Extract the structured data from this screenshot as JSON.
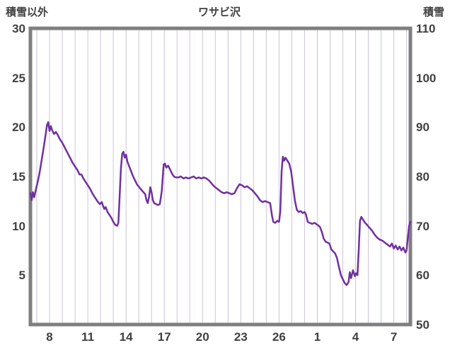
{
  "colors": {
    "line": "#7030a0",
    "frame": "#7f7f7f",
    "grid": "#ccc4d8",
    "text": "#404040",
    "background": "#ffffff"
  },
  "chart_data": {
    "type": "line",
    "title": "ワサビ沢",
    "left_axis": {
      "label": "積雪以外",
      "min": 0,
      "max": 30,
      "ticks": [
        30,
        25,
        20,
        15,
        10,
        5
      ]
    },
    "right_axis": {
      "label": "積雪",
      "min": 50,
      "max": 110,
      "ticks": [
        110,
        100,
        90,
        80,
        70,
        60,
        50
      ]
    },
    "x_axis": {
      "min": 6.5,
      "max": 36.3,
      "tick_days": [
        8,
        11,
        14,
        17,
        20,
        23,
        26,
        29,
        32,
        35
      ],
      "tick_labels": [
        "8",
        "11",
        "14",
        "17",
        "20",
        "23",
        "26",
        "1",
        "4",
        "7"
      ],
      "gridlines": "daily",
      "horizontal_gridlines": false
    },
    "series": [
      {
        "name": "積雪",
        "color": "#7030a0",
        "points": [
          [
            6.5,
            13.3
          ],
          [
            6.6,
            12.6
          ],
          [
            6.7,
            13.4
          ],
          [
            6.8,
            12.9
          ],
          [
            6.95,
            13.8
          ],
          [
            7.1,
            14.6
          ],
          [
            7.25,
            15.6
          ],
          [
            7.4,
            16.8
          ],
          [
            7.55,
            18.0
          ],
          [
            7.7,
            19.3
          ],
          [
            7.8,
            20.2
          ],
          [
            7.9,
            20.5
          ],
          [
            8.0,
            19.6
          ],
          [
            8.1,
            20.1
          ],
          [
            8.2,
            19.7
          ],
          [
            8.35,
            19.3
          ],
          [
            8.5,
            19.5
          ],
          [
            8.65,
            19.2
          ],
          [
            8.8,
            18.8
          ],
          [
            9.0,
            18.4
          ],
          [
            9.2,
            17.9
          ],
          [
            9.4,
            17.4
          ],
          [
            9.6,
            16.9
          ],
          [
            9.8,
            16.4
          ],
          [
            10.0,
            16.0
          ],
          [
            10.2,
            15.6
          ],
          [
            10.35,
            15.2
          ],
          [
            10.5,
            15.2
          ],
          [
            10.65,
            14.8
          ],
          [
            10.8,
            14.5
          ],
          [
            11.0,
            14.1
          ],
          [
            11.2,
            13.7
          ],
          [
            11.35,
            13.3
          ],
          [
            11.5,
            13.0
          ],
          [
            11.65,
            12.7
          ],
          [
            11.8,
            12.4
          ],
          [
            11.95,
            12.2
          ],
          [
            12.1,
            12.4
          ],
          [
            12.2,
            12.0
          ],
          [
            12.3,
            11.7
          ],
          [
            12.4,
            11.9
          ],
          [
            12.55,
            11.4
          ],
          [
            12.7,
            11.1
          ],
          [
            12.85,
            10.8
          ],
          [
            13.0,
            10.4
          ],
          [
            13.15,
            10.1
          ],
          [
            13.3,
            10.0
          ],
          [
            13.4,
            10.3
          ],
          [
            13.5,
            13.0
          ],
          [
            13.6,
            15.8
          ],
          [
            13.7,
            17.3
          ],
          [
            13.8,
            17.5
          ],
          [
            13.9,
            16.9
          ],
          [
            14.0,
            17.2
          ],
          [
            14.1,
            16.5
          ],
          [
            14.25,
            16.0
          ],
          [
            14.4,
            15.5
          ],
          [
            14.55,
            15.0
          ],
          [
            14.7,
            14.6
          ],
          [
            14.85,
            14.2
          ],
          [
            15.1,
            13.8
          ],
          [
            15.3,
            13.5
          ],
          [
            15.5,
            13.2
          ],
          [
            15.6,
            12.6
          ],
          [
            15.7,
            12.3
          ],
          [
            15.8,
            12.9
          ],
          [
            15.9,
            13.9
          ],
          [
            16.0,
            13.4
          ],
          [
            16.1,
            12.6
          ],
          [
            16.2,
            12.3
          ],
          [
            16.35,
            12.2
          ],
          [
            16.5,
            12.1
          ],
          [
            16.65,
            12.2
          ],
          [
            16.8,
            13.5
          ],
          [
            16.95,
            16.2
          ],
          [
            17.05,
            16.3
          ],
          [
            17.15,
            15.9
          ],
          [
            17.3,
            16.1
          ],
          [
            17.45,
            15.7
          ],
          [
            17.6,
            15.3
          ],
          [
            17.75,
            15.0
          ],
          [
            17.9,
            14.9
          ],
          [
            18.1,
            14.9
          ],
          [
            18.3,
            15.0
          ],
          [
            18.5,
            14.8
          ],
          [
            18.7,
            14.9
          ],
          [
            18.9,
            14.8
          ],
          [
            19.1,
            14.9
          ],
          [
            19.3,
            15.0
          ],
          [
            19.5,
            14.8
          ],
          [
            19.7,
            14.9
          ],
          [
            19.9,
            14.8
          ],
          [
            20.1,
            14.9
          ],
          [
            20.3,
            14.8
          ],
          [
            20.5,
            14.6
          ],
          [
            20.7,
            14.3
          ],
          [
            20.9,
            14.0
          ],
          [
            21.1,
            13.8
          ],
          [
            21.3,
            13.6
          ],
          [
            21.5,
            13.4
          ],
          [
            21.7,
            13.3
          ],
          [
            21.9,
            13.4
          ],
          [
            22.1,
            13.3
          ],
          [
            22.3,
            13.2
          ],
          [
            22.5,
            13.3
          ],
          [
            22.7,
            13.8
          ],
          [
            22.9,
            14.2
          ],
          [
            23.1,
            14.1
          ],
          [
            23.3,
            13.9
          ],
          [
            23.5,
            14.0
          ],
          [
            23.7,
            13.8
          ],
          [
            23.9,
            13.6
          ],
          [
            24.1,
            13.3
          ],
          [
            24.3,
            13.0
          ],
          [
            24.5,
            12.6
          ],
          [
            24.7,
            12.4
          ],
          [
            24.9,
            12.5
          ],
          [
            25.1,
            12.4
          ],
          [
            25.3,
            12.3
          ],
          [
            25.45,
            11.0
          ],
          [
            25.55,
            10.4
          ],
          [
            25.7,
            10.3
          ],
          [
            25.85,
            10.5
          ],
          [
            26.0,
            10.4
          ],
          [
            26.1,
            11.5
          ],
          [
            26.2,
            15.5
          ],
          [
            26.3,
            17.0
          ],
          [
            26.4,
            16.6
          ],
          [
            26.5,
            16.9
          ],
          [
            26.65,
            16.6
          ],
          [
            26.8,
            16.3
          ],
          [
            26.95,
            15.5
          ],
          [
            27.1,
            14.0
          ],
          [
            27.25,
            12.5
          ],
          [
            27.4,
            11.6
          ],
          [
            27.55,
            11.4
          ],
          [
            27.7,
            11.5
          ],
          [
            27.85,
            11.3
          ],
          [
            28.0,
            11.4
          ],
          [
            28.1,
            11.2
          ],
          [
            28.25,
            10.4
          ],
          [
            28.4,
            10.3
          ],
          [
            28.6,
            10.2
          ],
          [
            28.8,
            10.3
          ],
          [
            29.0,
            10.1
          ],
          [
            29.2,
            9.9
          ],
          [
            29.35,
            9.4
          ],
          [
            29.5,
            8.7
          ],
          [
            29.65,
            8.4
          ],
          [
            29.8,
            8.3
          ],
          [
            29.95,
            8.2
          ],
          [
            30.1,
            7.6
          ],
          [
            30.25,
            7.4
          ],
          [
            30.4,
            7.2
          ],
          [
            30.55,
            6.7
          ],
          [
            30.7,
            5.8
          ],
          [
            30.85,
            5.0
          ],
          [
            31.0,
            4.6
          ],
          [
            31.15,
            4.2
          ],
          [
            31.3,
            4.0
          ],
          [
            31.45,
            4.3
          ],
          [
            31.55,
            5.3
          ],
          [
            31.65,
            4.7
          ],
          [
            31.8,
            5.5
          ],
          [
            31.95,
            4.9
          ],
          [
            32.05,
            5.2
          ],
          [
            32.15,
            5.0
          ],
          [
            32.25,
            7.5
          ],
          [
            32.35,
            10.5
          ],
          [
            32.45,
            10.9
          ],
          [
            32.6,
            10.6
          ],
          [
            32.75,
            10.3
          ],
          [
            32.9,
            10.1
          ],
          [
            33.1,
            9.8
          ],
          [
            33.3,
            9.5
          ],
          [
            33.5,
            9.1
          ],
          [
            33.7,
            8.8
          ],
          [
            33.9,
            8.6
          ],
          [
            34.1,
            8.5
          ],
          [
            34.3,
            8.3
          ],
          [
            34.5,
            8.1
          ],
          [
            34.7,
            7.9
          ],
          [
            34.85,
            8.2
          ],
          [
            35.0,
            7.7
          ],
          [
            35.15,
            8.0
          ],
          [
            35.3,
            7.6
          ],
          [
            35.45,
            7.9
          ],
          [
            35.6,
            7.5
          ],
          [
            35.75,
            7.8
          ],
          [
            35.9,
            7.3
          ],
          [
            36.0,
            7.5
          ],
          [
            36.1,
            8.8
          ],
          [
            36.2,
            10.0
          ],
          [
            36.3,
            10.4
          ]
        ]
      }
    ]
  }
}
